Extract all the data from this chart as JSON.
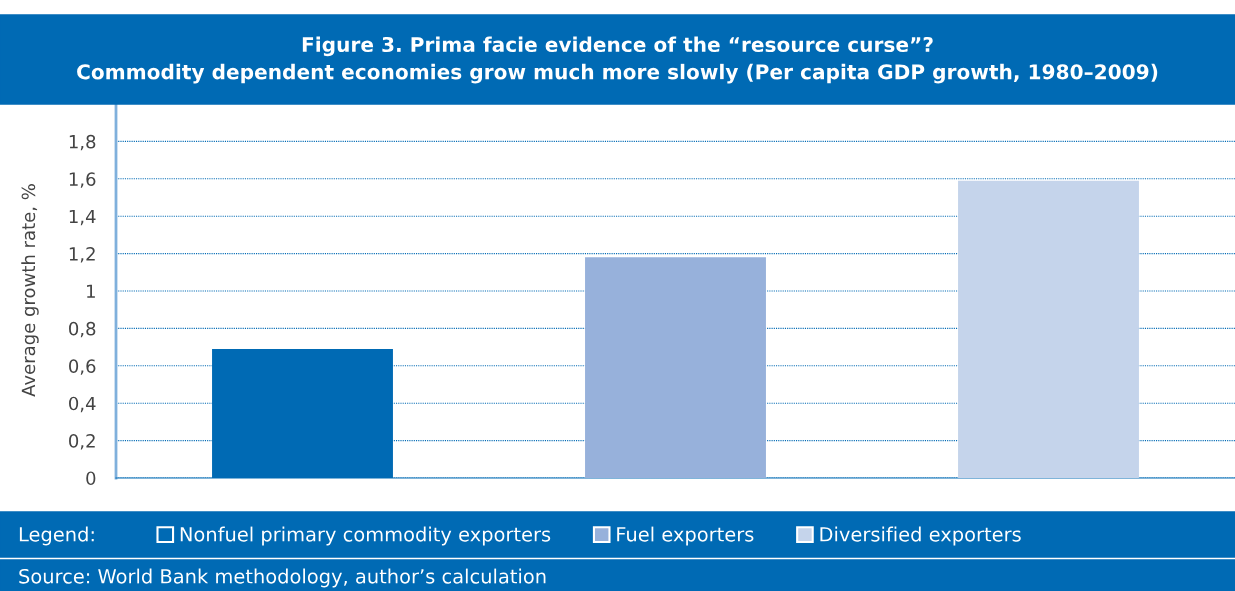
{
  "chart_data": {
    "type": "bar",
    "title": "Figure 3. Prima facie evidence of the “resource curse”?\nCommodity dependent economies grow much more slowly (Per capita GDP growth, 1980–2009)",
    "ylabel": "Average growth rate, %",
    "categories": [
      null,
      null,
      null
    ],
    "series": [
      {
        "name": "Nonfuel primary commodity exporters",
        "color": "#006ab4",
        "values": [
          0.69,
          null,
          null
        ]
      },
      {
        "name": "Fuel exporters",
        "color": "#97b1db",
        "values": [
          null,
          1.18,
          null
        ]
      },
      {
        "name": "Diversified exporters",
        "color": "#c5d4eb",
        "values": [
          null,
          null,
          1.59
        ]
      }
    ],
    "legend_title": "Legend:",
    "legend": "bottom",
    "ylim": [
      0,
      2.0
    ],
    "yticks": [
      {
        "value": 0,
        "label": "0"
      },
      {
        "value": 0.2,
        "label": "0,2"
      },
      {
        "value": 0.4,
        "label": "0,4"
      },
      {
        "value": 0.6,
        "label": "0,6"
      },
      {
        "value": 0.8,
        "label": "0,8"
      },
      {
        "value": 1,
        "label": "1"
      },
      {
        "value": 1.2,
        "label": "1,2"
      },
      {
        "value": 1.4,
        "label": "1,4"
      },
      {
        "value": 1.6,
        "label": "1,6"
      },
      {
        "value": 1.8,
        "label": "1,8"
      }
    ],
    "grid": "y",
    "annotations": [
      "Source: World Bank methodology, author’s calculation"
    ]
  }
}
